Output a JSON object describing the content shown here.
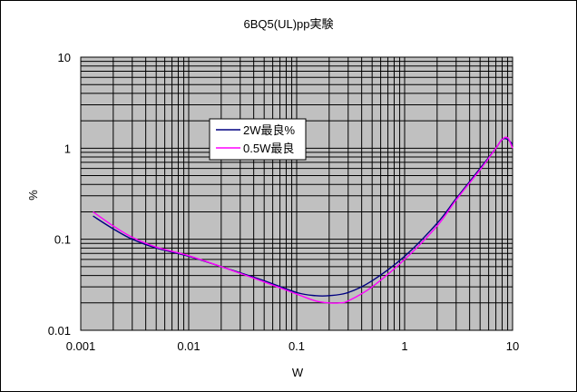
{
  "chart_data": {
    "type": "line",
    "title": "6BQ5(UL)pp実験",
    "xlabel": "W",
    "ylabel": "%",
    "xscale": "log",
    "yscale": "log",
    "xlim": [
      0.001,
      10
    ],
    "ylim": [
      0.01,
      10
    ],
    "x_tick_labels": [
      "0.001",
      "0.01",
      "0.1",
      "1",
      "10"
    ],
    "y_tick_labels": [
      "0.01",
      "0.1",
      "1",
      "10"
    ],
    "grid": true,
    "legend_position": "upper-left-center",
    "series": [
      {
        "name": "2W最良%",
        "color": "#000080",
        "x": [
          0.0013,
          0.002,
          0.003,
          0.005,
          0.01,
          0.02,
          0.05,
          0.1,
          0.15,
          0.2,
          0.3,
          0.5,
          1,
          2,
          3,
          5,
          7,
          8,
          9,
          10
        ],
        "y": [
          0.18,
          0.13,
          0.1,
          0.08,
          0.065,
          0.05,
          0.035,
          0.026,
          0.024,
          0.024,
          0.026,
          0.035,
          0.065,
          0.15,
          0.28,
          0.6,
          1.0,
          1.25,
          1.25,
          1.1
        ]
      },
      {
        "name": "0.5W最良",
        "color": "#ff00ff",
        "x": [
          0.0013,
          0.002,
          0.003,
          0.005,
          0.01,
          0.02,
          0.05,
          0.1,
          0.15,
          0.2,
          0.25,
          0.3,
          0.5,
          1,
          2,
          3,
          5,
          7,
          8,
          9,
          10
        ],
        "y": [
          0.2,
          0.14,
          0.105,
          0.082,
          0.066,
          0.05,
          0.034,
          0.025,
          0.021,
          0.02,
          0.02,
          0.021,
          0.03,
          0.06,
          0.14,
          0.27,
          0.58,
          1.0,
          1.25,
          1.3,
          1.0
        ]
      }
    ]
  }
}
